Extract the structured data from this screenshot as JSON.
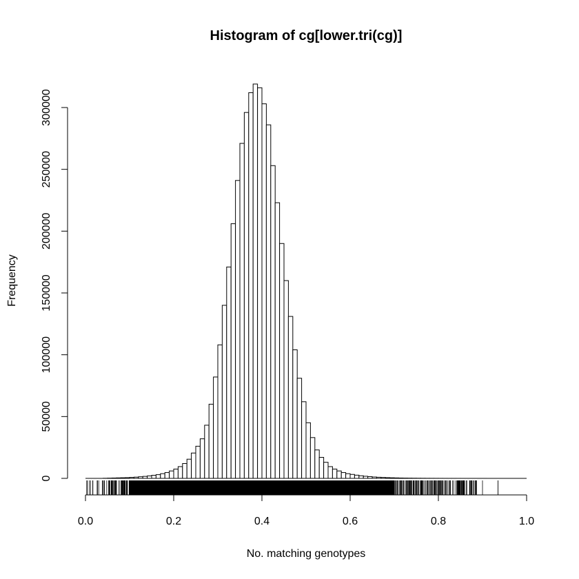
{
  "chart_data": {
    "type": "bar",
    "title": "Histogram of cg[lower.tri(cg)]",
    "xlabel": "No. matching genotypes",
    "ylabel": "Frequency",
    "xlim": [
      0,
      1
    ],
    "ylim": [
      0,
      320000
    ],
    "bin_width": 0.01,
    "x_ticks": [
      "0.0",
      "0.2",
      "0.4",
      "0.6",
      "0.8",
      "1.0"
    ],
    "y_ticks": [
      "0",
      "50000",
      "100000",
      "150000",
      "200000",
      "250000",
      "300000"
    ],
    "values": [
      0,
      0,
      0,
      0,
      100,
      200,
      300,
      400,
      500,
      600,
      800,
      1000,
      1300,
      1600,
      2000,
      2500,
      3000,
      3800,
      4700,
      6000,
      7500,
      9500,
      12000,
      15500,
      20500,
      26000,
      32000,
      43000,
      60000,
      82000,
      108000,
      140000,
      171000,
      206000,
      241000,
      271000,
      296000,
      312000,
      319000,
      316000,
      303000,
      286000,
      253000,
      223000,
      190000,
      160000,
      131000,
      104000,
      81000,
      62000,
      45000,
      33000,
      23000,
      17000,
      13000,
      9500,
      7500,
      6000,
      4700,
      3800,
      3200,
      2600,
      2100,
      1700,
      1400,
      1100,
      900,
      750,
      600,
      480,
      380,
      300,
      240,
      190,
      150,
      120,
      100,
      80,
      60,
      50,
      40,
      30,
      25,
      20,
      15,
      10,
      8,
      6,
      5,
      4,
      3,
      2,
      0,
      0,
      0,
      0,
      0,
      0,
      0,
      0
    ],
    "rug_range": [
      0.003,
      0.935
    ],
    "rug_note_values": [
      0.88,
      0.9,
      0.935
    ]
  }
}
